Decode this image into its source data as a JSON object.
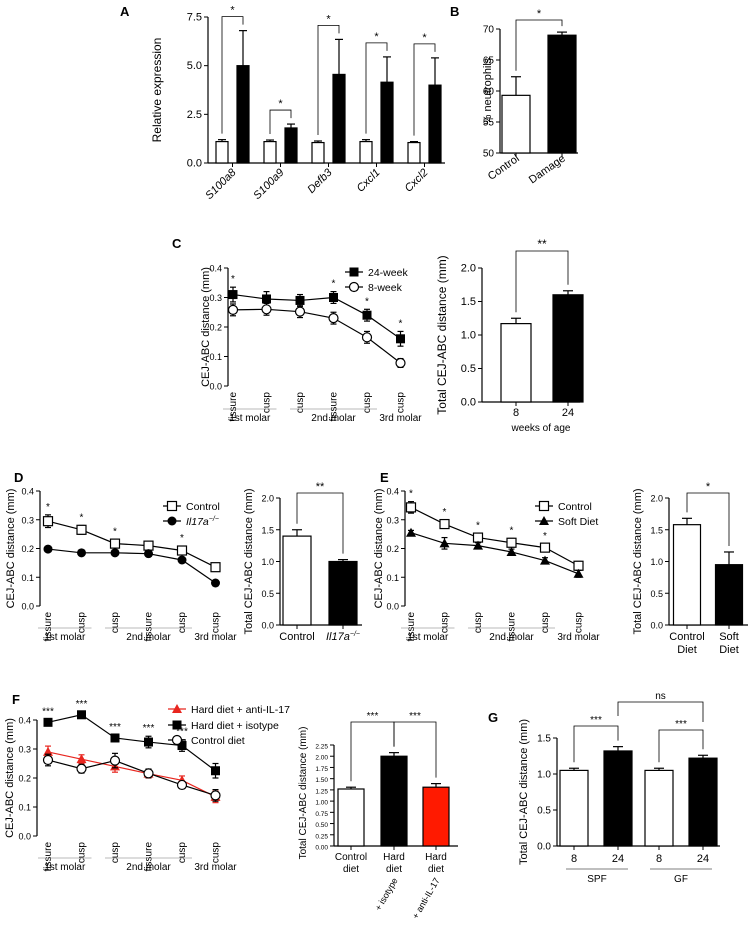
{
  "panels": {
    "A": "A",
    "B": "B",
    "C": "C",
    "D": "D",
    "E": "E",
    "F": "F",
    "G": "G"
  },
  "molar_labels": {
    "m1": "1st molar",
    "m2": "2nd molar",
    "m3": "3rd molar"
  },
  "chart_data": [
    {
      "id": "A",
      "type": "bar",
      "title": "",
      "ylabel": "Relative expression",
      "ylim": [
        0,
        7.5
      ],
      "yticks": [
        "0.0",
        "2.5",
        "5.0",
        "7.5"
      ],
      "ytick_values": [
        0,
        2.5,
        5,
        7.5
      ],
      "categories": [
        "S100a8",
        "S100a9",
        "Defb3",
        "Cxcl1",
        "Cxcl2"
      ],
      "series": [
        {
          "name": "Control",
          "fill": "#ffffff",
          "values": [
            1.1,
            1.1,
            1.05,
            1.1,
            1.05
          ],
          "errors": [
            0.1,
            0.08,
            0.08,
            0.1,
            0.05
          ]
        },
        {
          "name": "Damage",
          "fill": "#000000",
          "values": [
            5.0,
            1.8,
            4.55,
            4.15,
            4.0
          ],
          "errors": [
            1.8,
            0.2,
            1.8,
            1.3,
            1.4
          ]
        }
      ],
      "significance": [
        "*",
        "*",
        "*",
        "*",
        "*"
      ]
    },
    {
      "id": "B",
      "type": "bar",
      "ylabel": "% neutrophils",
      "ylim": [
        50,
        70
      ],
      "yticks": [
        "50",
        "55",
        "60",
        "65",
        "70"
      ],
      "ytick_values": [
        50,
        55,
        60,
        65,
        70
      ],
      "categories": [
        "Control",
        "Damage"
      ],
      "values": [
        59.3,
        69.0
      ],
      "errors": [
        3.0,
        0.5
      ],
      "fills": [
        "#ffffff",
        "#000000"
      ],
      "significance": "*"
    },
    {
      "id": "C-left",
      "type": "line",
      "ylabel": "CEJ-ABC distance (mm)",
      "ylim": [
        0,
        0.4
      ],
      "yticks": [
        "0.0",
        "0.1",
        "0.2",
        "0.3",
        "0.4"
      ],
      "ytick_values": [
        0,
        0.1,
        0.2,
        0.3,
        0.4
      ],
      "categories": [
        "fissure",
        "cusp",
        "cusp",
        "fissure",
        "cusp",
        "cusp"
      ],
      "series": [
        {
          "name": "24-week",
          "marker": "square-filled",
          "values": [
            0.31,
            0.295,
            0.29,
            0.3,
            0.24,
            0.16
          ],
          "errors": [
            0.025,
            0.025,
            0.02,
            0.02,
            0.02,
            0.025
          ]
        },
        {
          "name": "8-week",
          "marker": "circle-open",
          "values": [
            0.258,
            0.26,
            0.252,
            0.23,
            0.165,
            0.078
          ],
          "errors": [
            0.02,
            0.02,
            0.02,
            0.02,
            0.02,
            0.015
          ]
        }
      ],
      "significance": [
        "*",
        "",
        "",
        "*",
        "*",
        "*"
      ]
    },
    {
      "id": "C-right",
      "type": "bar",
      "ylabel": "Total CEJ-ABC distance (mm)",
      "ylim": [
        0,
        2.0
      ],
      "yticks": [
        "0.0",
        "0.5",
        "1.0",
        "1.5",
        "2.0"
      ],
      "ytick_values": [
        0,
        0.5,
        1,
        1.5,
        2
      ],
      "categories": [
        "8",
        "24"
      ],
      "xlabel": "weeks of age",
      "values": [
        1.17,
        1.6
      ],
      "errors": [
        0.08,
        0.06
      ],
      "fills": [
        "#ffffff",
        "#000000"
      ],
      "significance": "**"
    },
    {
      "id": "D-left",
      "type": "line",
      "ylabel": "CEJ-ABC distance (mm)",
      "ylim": [
        0,
        0.4
      ],
      "yticks": [
        "0.0",
        "0.1",
        "0.2",
        "0.3",
        "0.4"
      ],
      "ytick_values": [
        0,
        0.1,
        0.2,
        0.3,
        0.4
      ],
      "categories": [
        "fissure",
        "cusp",
        "cusp",
        "fissure",
        "cusp",
        "cusp"
      ],
      "series": [
        {
          "name": "Control",
          "marker": "square-open",
          "values": [
            0.295,
            0.265,
            0.217,
            0.21,
            0.193,
            0.135
          ],
          "errors": [
            0.022,
            0.015,
            0.015,
            0.012,
            0.015,
            0.012
          ]
        },
        {
          "name": "Il17a-/-",
          "marker": "circle-filled",
          "values": [
            0.198,
            0.185,
            0.185,
            0.182,
            0.16,
            0.08
          ],
          "errors": [
            0.005,
            0.005,
            0.005,
            0.005,
            0.006,
            0.005
          ]
        }
      ],
      "significance": [
        "*",
        "*",
        "*",
        "",
        "*",
        ""
      ]
    },
    {
      "id": "D-right",
      "type": "bar",
      "ylabel": "Total CEJ-ABC distance (mm)",
      "ylim": [
        0,
        2.0
      ],
      "yticks": [
        "0.0",
        "0.5",
        "1.0",
        "1.5",
        "2.0"
      ],
      "ytick_values": [
        0,
        0.5,
        1,
        1.5,
        2
      ],
      "categories": [
        "Control",
        "Il17a-/-"
      ],
      "values": [
        1.4,
        1.0
      ],
      "errors": [
        0.1,
        0.03
      ],
      "fills": [
        "#ffffff",
        "#000000"
      ],
      "significance": "**"
    },
    {
      "id": "E-left",
      "type": "line",
      "ylabel": "CEJ-ABC distance (mm)",
      "ylim": [
        0,
        0.4
      ],
      "yticks": [
        "0.0",
        "0.1",
        "0.2",
        "0.3",
        "0.4"
      ],
      "ytick_values": [
        0,
        0.1,
        0.2,
        0.3,
        0.4
      ],
      "categories": [
        "fissure",
        "cusp",
        "cusp",
        "fissure",
        "cusp",
        "cusp"
      ],
      "series": [
        {
          "name": "Control",
          "marker": "square-open",
          "values": [
            0.343,
            0.285,
            0.238,
            0.22,
            0.203,
            0.14
          ],
          "errors": [
            0.02,
            0.015,
            0.015,
            0.015,
            0.012,
            0.015
          ]
        },
        {
          "name": "Soft Diet",
          "marker": "triangle-filled",
          "values": [
            0.255,
            0.218,
            0.21,
            0.188,
            0.158,
            0.112
          ],
          "errors": [
            0.008,
            0.02,
            0.01,
            0.01,
            0.01,
            0.012
          ]
        }
      ],
      "significance": [
        "*",
        "*",
        "*",
        "*",
        "*",
        ""
      ]
    },
    {
      "id": "E-right",
      "type": "bar",
      "ylabel": "Total CEJ-ABC distance (mm)",
      "ylim": [
        0,
        2.0
      ],
      "yticks": [
        "0.0",
        "0.5",
        "1.0",
        "1.5",
        "2.0"
      ],
      "ytick_values": [
        0,
        0.5,
        1,
        1.5,
        2
      ],
      "categories": [
        "Control Diet",
        "Soft Diet"
      ],
      "values": [
        1.58,
        0.95
      ],
      "errors": [
        0.1,
        0.2
      ],
      "fills": [
        "#ffffff",
        "#000000"
      ],
      "significance": "*"
    },
    {
      "id": "F-left",
      "type": "line",
      "ylabel": "CEJ-ABC distance (mm)",
      "ylim": [
        0,
        0.4
      ],
      "yticks": [
        "0.0",
        "0.1",
        "0.2",
        "0.3",
        "0.4"
      ],
      "ytick_values": [
        0,
        0.1,
        0.2,
        0.3,
        0.4
      ],
      "categories": [
        "fissure",
        "cusp",
        "cusp",
        "fissure",
        "cusp",
        "cusp"
      ],
      "series": [
        {
          "name": "Hard diet + anti-IL-17",
          "marker": "triangle-red",
          "color": "#e8261f",
          "values": [
            0.29,
            0.265,
            0.24,
            0.215,
            0.192,
            0.135
          ],
          "errors": [
            0.02,
            0.015,
            0.02,
            0.015,
            0.015,
            0.02
          ]
        },
        {
          "name": "Hard diet + isotype",
          "marker": "square-filled",
          "color": "#000000",
          "values": [
            0.392,
            0.418,
            0.338,
            0.324,
            0.312,
            0.225
          ],
          "errors": [
            0.01,
            0.01,
            0.01,
            0.02,
            0.02,
            0.025
          ]
        },
        {
          "name": "Control diet",
          "marker": "circle-open",
          "color": "#000000",
          "values": [
            0.262,
            0.232,
            0.26,
            0.216,
            0.176,
            0.14
          ],
          "errors": [
            0.02,
            0.015,
            0.025,
            0.015,
            0.012,
            0.02
          ]
        }
      ],
      "significance": [
        "***",
        "***",
        "***",
        "***",
        "***",
        ""
      ]
    },
    {
      "id": "F-right",
      "type": "bar",
      "ylabel": "Total CEJ-ABC distance (mm)",
      "ylim": [
        0,
        2.25
      ],
      "yticks": [
        "0.00",
        "0.25",
        "0.50",
        "0.75",
        "1.00",
        "1.25",
        "1.50",
        "1.75",
        "2.00",
        "2.25"
      ],
      "ytick_values": [
        0,
        0.25,
        0.5,
        0.75,
        1.0,
        1.25,
        1.5,
        1.75,
        2.0,
        2.25
      ],
      "categories": [
        "Control diet",
        "Hard diet",
        "Hard diet"
      ],
      "sublabels": [
        "",
        "+ isotype",
        "+ anti-IL-17"
      ],
      "values": [
        1.27,
        2.0,
        1.31
      ],
      "errors": [
        0.04,
        0.08,
        0.08
      ],
      "fills": [
        "#ffffff",
        "#000000",
        "#ff1a00"
      ],
      "significance": [
        "***",
        "***"
      ]
    },
    {
      "id": "G",
      "type": "bar",
      "ylabel": "Total CEJ-ABC distance (mm)",
      "ylim": [
        0,
        1.5
      ],
      "yticks": [
        "0.0",
        "0.5",
        "1.0",
        "1.5"
      ],
      "ytick_values": [
        0,
        0.5,
        1.0,
        1.5
      ],
      "categories": [
        "8",
        "24",
        "8",
        "24"
      ],
      "groups": [
        "SPF",
        "GF"
      ],
      "values": [
        1.05,
        1.32,
        1.05,
        1.22
      ],
      "errors": [
        0.03,
        0.06,
        0.03,
        0.04
      ],
      "fills": [
        "#ffffff",
        "#000000",
        "#ffffff",
        "#000000"
      ],
      "significance": [
        "***",
        "***",
        "ns"
      ]
    }
  ]
}
